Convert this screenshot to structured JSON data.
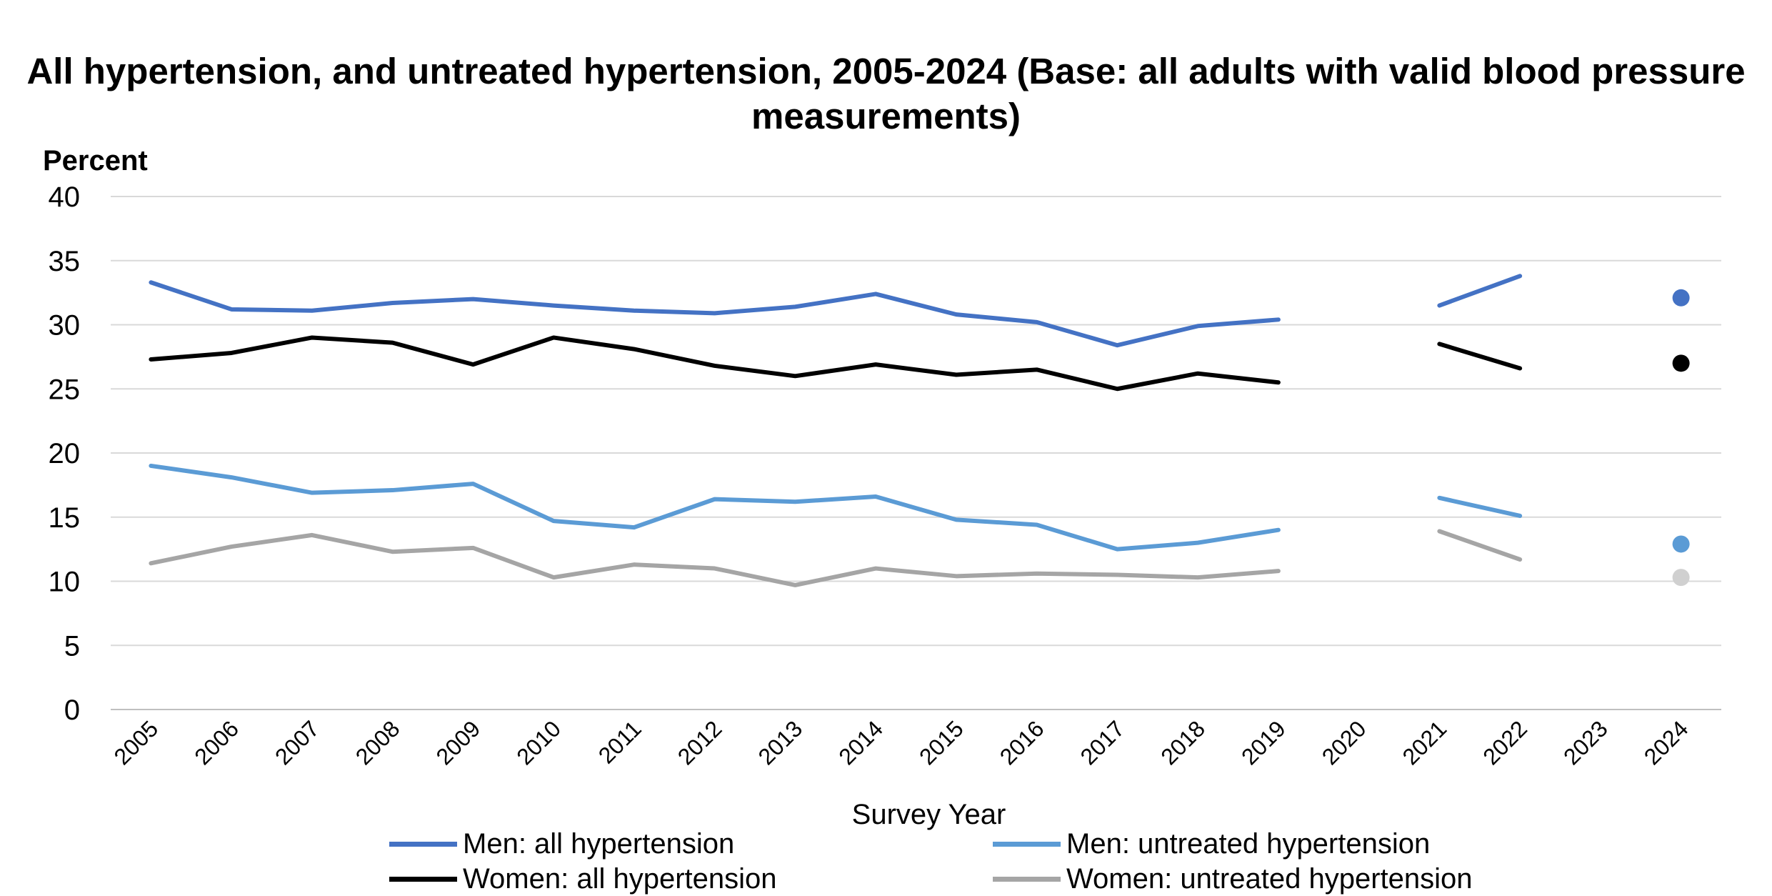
{
  "chart_data": {
    "type": "line",
    "title": "All hypertension, and untreated hypertension, 2005-2024 (Base: all adults with valid blood pressure measurements)",
    "ylabel": "Percent",
    "xlabel": "Survey Year",
    "ylim": [
      0,
      40
    ],
    "yticks": [
      0,
      5,
      10,
      15,
      20,
      25,
      30,
      35,
      40
    ],
    "grid": true,
    "legend_position": "bottom",
    "categories": [
      "2005",
      "2006",
      "2007",
      "2008",
      "2009",
      "2010",
      "2011",
      "2012",
      "2013",
      "2014",
      "2015",
      "2016",
      "2017",
      "2018",
      "2019",
      "2020",
      "2021",
      "2022",
      "2023",
      "2024"
    ],
    "series": [
      {
        "name": "Men: all hypertension",
        "color": "#4472C4",
        "values": [
          33.3,
          31.2,
          31.1,
          31.7,
          32.0,
          31.5,
          31.1,
          30.9,
          31.4,
          32.4,
          30.8,
          30.2,
          28.4,
          29.9,
          30.4,
          null,
          31.5,
          33.8,
          null,
          32.1
        ]
      },
      {
        "name": "Men: untreated hypertension",
        "color": "#5B9BD5",
        "values": [
          19.0,
          18.1,
          16.9,
          17.1,
          17.6,
          14.7,
          14.2,
          16.4,
          16.2,
          16.6,
          14.8,
          14.4,
          12.5,
          13.0,
          14.0,
          null,
          16.5,
          15.1,
          null,
          12.9
        ]
      },
      {
        "name": "Women: all hypertension",
        "color": "#000000",
        "values": [
          27.3,
          27.8,
          29.0,
          28.6,
          26.9,
          29.0,
          28.1,
          26.8,
          26.0,
          26.9,
          26.1,
          26.5,
          25.0,
          26.2,
          25.5,
          null,
          28.5,
          26.6,
          null,
          27.0
        ]
      },
      {
        "name": "Women: untreated hypertension",
        "color": "#A5A5A5",
        "values": [
          11.4,
          12.7,
          13.6,
          12.3,
          12.6,
          10.3,
          11.3,
          11.0,
          9.7,
          11.0,
          10.4,
          10.6,
          10.5,
          10.3,
          10.8,
          null,
          13.9,
          11.7,
          null,
          10.3
        ]
      }
    ],
    "point_colors": {
      "Women: untreated hypertension": "#D0D0D0"
    }
  }
}
